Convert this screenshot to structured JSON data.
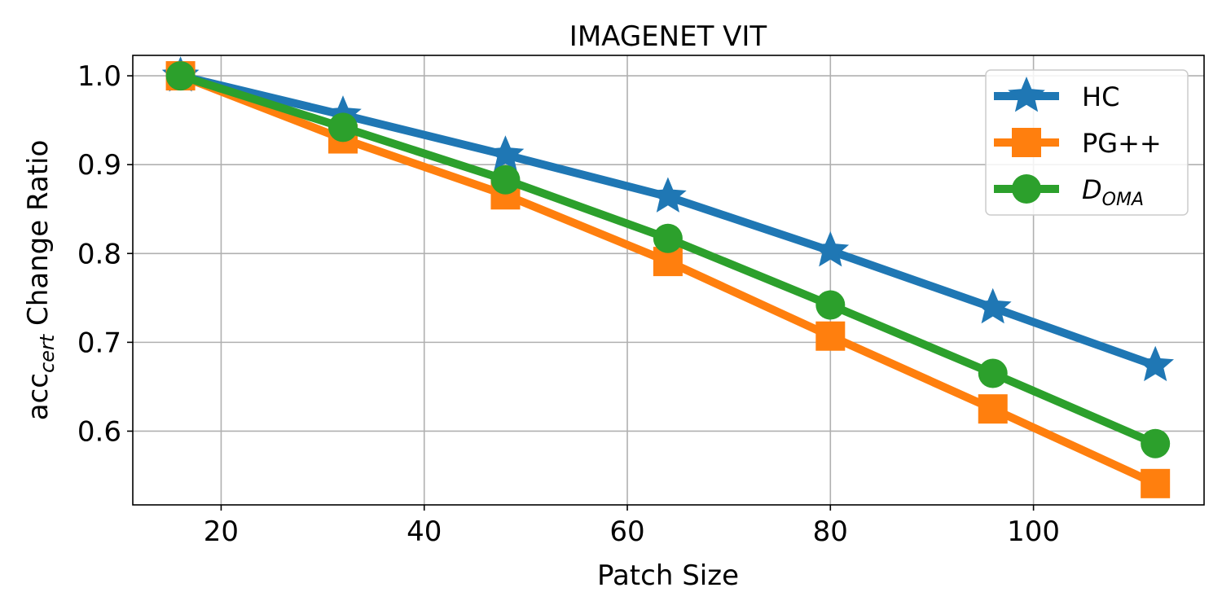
{
  "chart_data": {
    "type": "line",
    "title": "IMAGENET VIT",
    "xlabel": "Patch Size",
    "ylabel": {
      "main": "acc",
      "sub": "cert",
      "rest": " Change Ratio"
    },
    "x": [
      16,
      32,
      48,
      64,
      80,
      96,
      112
    ],
    "xlim": [
      11.3,
      116.8
    ],
    "ylim": [
      0.517,
      1.023
    ],
    "xticks": [
      20,
      40,
      60,
      80,
      100
    ],
    "yticks": [
      0.6,
      0.7,
      0.8,
      0.9,
      1.0
    ],
    "ytick_labels": [
      "0.6",
      "0.7",
      "0.8",
      "0.9",
      "1.0"
    ],
    "grid": true,
    "legend_position": "top-right",
    "series": [
      {
        "name": "HC",
        "name_sub": "",
        "color": "#1f77b4",
        "marker": "star",
        "values": [
          1.0,
          0.956,
          0.911,
          0.864,
          0.803,
          0.739,
          0.674
        ]
      },
      {
        "name": "PG++",
        "name_sub": "",
        "color": "#ff7f0e",
        "marker": "square",
        "values": [
          1.0,
          0.929,
          0.866,
          0.791,
          0.707,
          0.625,
          0.541
        ]
      },
      {
        "name": "D",
        "name_sub": "OMA",
        "color": "#2ca02c",
        "marker": "circle",
        "values": [
          1.0,
          0.942,
          0.883,
          0.817,
          0.742,
          0.665,
          0.586
        ]
      }
    ]
  }
}
